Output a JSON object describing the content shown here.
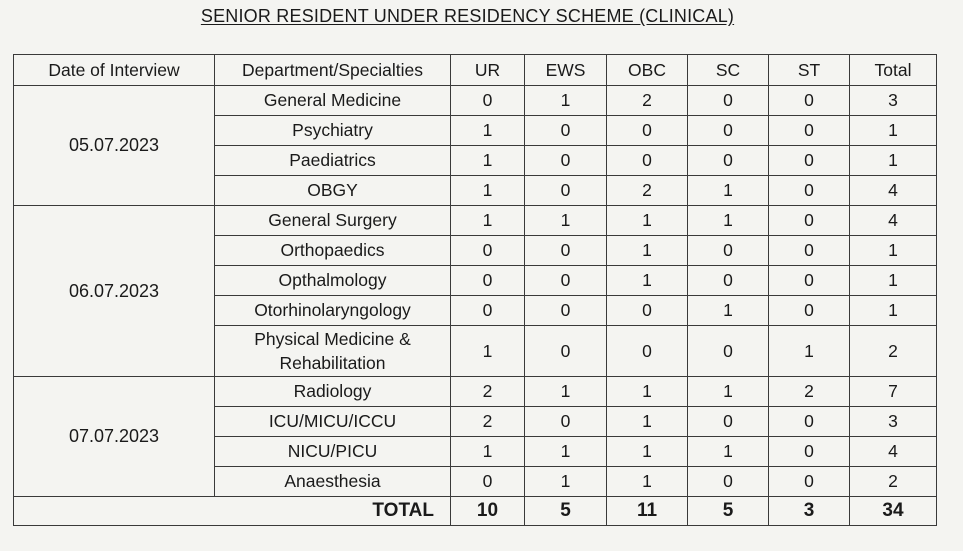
{
  "title": "SENIOR RESIDENT UNDER RESIDENCY SCHEME (CLINICAL)",
  "headers": {
    "date": "Date of Interview",
    "dept": "Department/Specialties",
    "ur": "UR",
    "ews": "EWS",
    "obc": "OBC",
    "sc": "SC",
    "st": "ST",
    "total": "Total"
  },
  "groups": [
    {
      "date": "05.07.2023",
      "rows": [
        {
          "dept": "General Medicine",
          "ur": "0",
          "ews": "1",
          "obc": "2",
          "sc": "0",
          "st": "0",
          "total": "3"
        },
        {
          "dept": "Psychiatry",
          "ur": "1",
          "ews": "0",
          "obc": "0",
          "sc": "0",
          "st": "0",
          "total": "1"
        },
        {
          "dept": "Paediatrics",
          "ur": "1",
          "ews": "0",
          "obc": "0",
          "sc": "0",
          "st": "0",
          "total": "1"
        },
        {
          "dept": "OBGY",
          "ur": "1",
          "ews": "0",
          "obc": "2",
          "sc": "1",
          "st": "0",
          "total": "4"
        }
      ]
    },
    {
      "date": "06.07.2023",
      "rows": [
        {
          "dept": "General Surgery",
          "ur": "1",
          "ews": "1",
          "obc": "1",
          "sc": "1",
          "st": "0",
          "total": "4"
        },
        {
          "dept": "Orthopaedics",
          "ur": "0",
          "ews": "0",
          "obc": "1",
          "sc": "0",
          "st": "0",
          "total": "1"
        },
        {
          "dept": "Opthalmology",
          "ur": "0",
          "ews": "0",
          "obc": "1",
          "sc": "0",
          "st": "0",
          "total": "1"
        },
        {
          "dept": "Otorhinolaryngology",
          "ur": "0",
          "ews": "0",
          "obc": "0",
          "sc": "1",
          "st": "0",
          "total": "1"
        },
        {
          "dept": "Physical Medicine & Rehabilitation",
          "ur": "1",
          "ews": "0",
          "obc": "0",
          "sc": "0",
          "st": "1",
          "total": "2"
        }
      ]
    },
    {
      "date": "07.07.2023",
      "rows": [
        {
          "dept": "Radiology",
          "ur": "2",
          "ews": "1",
          "obc": "1",
          "sc": "1",
          "st": "2",
          "total": "7"
        },
        {
          "dept": "ICU/MICU/ICCU",
          "ur": "2",
          "ews": "0",
          "obc": "1",
          "sc": "0",
          "st": "0",
          "total": "3"
        },
        {
          "dept": "NICU/PICU",
          "ur": "1",
          "ews": "1",
          "obc": "1",
          "sc": "1",
          "st": "0",
          "total": "4"
        },
        {
          "dept": "Anaesthesia",
          "ur": "0",
          "ews": "1",
          "obc": "1",
          "sc": "0",
          "st": "0",
          "total": "2"
        }
      ]
    }
  ],
  "totals": {
    "label": "TOTAL",
    "ur": "10",
    "ews": "5",
    "obc": "11",
    "sc": "5",
    "st": "3",
    "total": "34"
  }
}
